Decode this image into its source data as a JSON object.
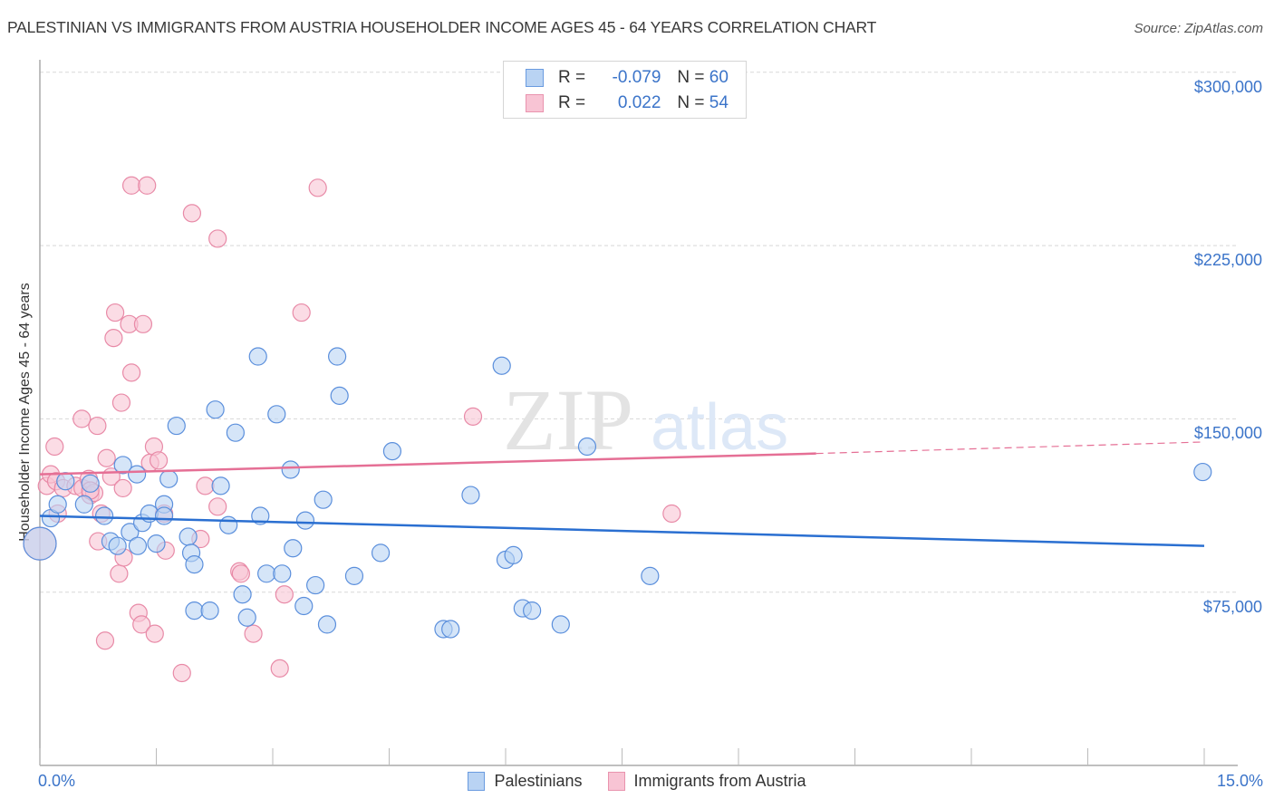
{
  "title": "PALESTINIAN VS IMMIGRANTS FROM AUSTRIA HOUSEHOLDER INCOME AGES 45 - 64 YEARS CORRELATION CHART",
  "source": "Source: ZipAtlas.com",
  "watermark": {
    "zip": "ZIP",
    "atlas": "atlas"
  },
  "colors": {
    "blue_fill": "#b9d3f3",
    "blue_stroke": "#5b8fdc",
    "blue_line": "#2a6fd1",
    "pink_fill": "#f8c4d4",
    "pink_stroke": "#e88aa7",
    "pink_line": "#e56f95",
    "axis_text": "#3b74c9",
    "grid": "#d8d8d8"
  },
  "legend": {
    "rows": [
      {
        "r_label": "R =",
        "r_value": "-0.079",
        "n_label": "N =",
        "n_value": "60",
        "series": "blue"
      },
      {
        "r_label": "R =",
        "r_value": "0.022",
        "n_label": "N =",
        "n_value": "54",
        "series": "pink"
      }
    ]
  },
  "bottom_legend": {
    "items": [
      {
        "label": "Palestinians",
        "series": "blue"
      },
      {
        "label": "Immigrants from Austria",
        "series": "pink"
      }
    ]
  },
  "axes": {
    "y_label": "Householder Income Ages 45 - 64 years",
    "y_ticks": [
      {
        "label": "$300,000",
        "value": 300000
      },
      {
        "label": "$225,000",
        "value": 225000
      },
      {
        "label": "$150,000",
        "value": 150000
      },
      {
        "label": "$75,000",
        "value": 75000
      }
    ],
    "x_ticks": [
      {
        "label": "0.0%",
        "value": 0
      },
      {
        "label": "15.0%",
        "value": 15
      }
    ]
  },
  "chart_data": {
    "type": "scatter",
    "title": "Palestinian vs Immigrants from Austria Householder Income Ages 45 - 64 Years Correlation Chart",
    "xlabel": "",
    "ylabel": "Householder Income Ages 45 - 64 years",
    "xlim": [
      0,
      15
    ],
    "ylim": [
      0,
      310000
    ],
    "x_unit": "%",
    "grid": true,
    "legend_position": "top-center and bottom",
    "series": [
      {
        "name": "Palestinians",
        "color": "#5b8fdc",
        "R": -0.079,
        "N": 60,
        "trend": {
          "x": [
            0,
            15
          ],
          "y": [
            108000,
            95000
          ]
        },
        "points": [
          [
            0.0,
            96000,
            18
          ],
          [
            0.14,
            107000
          ],
          [
            0.23,
            113000
          ],
          [
            0.33,
            123000
          ],
          [
            0.57,
            113000
          ],
          [
            0.65,
            122000
          ],
          [
            0.83,
            108000
          ],
          [
            0.91,
            97000
          ],
          [
            1.0,
            95000
          ],
          [
            1.07,
            130000
          ],
          [
            1.16,
            101000
          ],
          [
            1.25,
            126000
          ],
          [
            1.32,
            105000
          ],
          [
            1.41,
            109000
          ],
          [
            1.5,
            96000
          ],
          [
            1.6,
            113000
          ],
          [
            1.6,
            108000
          ],
          [
            1.66,
            124000
          ],
          [
            1.76,
            147000
          ],
          [
            1.91,
            99000
          ],
          [
            1.95,
            92000
          ],
          [
            1.99,
            87000
          ],
          [
            1.99,
            67000
          ],
          [
            2.19,
            67000
          ],
          [
            2.26,
            154000
          ],
          [
            2.33,
            121000
          ],
          [
            2.43,
            104000
          ],
          [
            2.52,
            144000
          ],
          [
            2.61,
            74000
          ],
          [
            2.67,
            64000
          ],
          [
            2.81,
            177000
          ],
          [
            2.84,
            108000
          ],
          [
            2.92,
            83000
          ],
          [
            3.05,
            152000
          ],
          [
            3.12,
            83000
          ],
          [
            3.23,
            128000
          ],
          [
            3.26,
            94000
          ],
          [
            3.4,
            69000
          ],
          [
            3.42,
            106000
          ],
          [
            3.55,
            78000
          ],
          [
            3.65,
            115000
          ],
          [
            3.7,
            61000
          ],
          [
            3.83,
            177000
          ],
          [
            3.86,
            160000
          ],
          [
            4.05,
            82000
          ],
          [
            4.39,
            92000
          ],
          [
            4.54,
            136000
          ],
          [
            5.2,
            59000
          ],
          [
            5.29,
            59000
          ],
          [
            5.55,
            117000
          ],
          [
            5.95,
            173000
          ],
          [
            6.0,
            89000
          ],
          [
            6.1,
            91000
          ],
          [
            6.22,
            68000
          ],
          [
            6.34,
            67000
          ],
          [
            6.71,
            61000
          ],
          [
            7.05,
            138000
          ],
          [
            7.86,
            82000
          ],
          [
            14.98,
            127000
          ],
          [
            1.26,
            95000
          ]
        ]
      },
      {
        "name": "Immigrants from Austria",
        "color": "#e88aa7",
        "R": 0.022,
        "N": 54,
        "trend": {
          "x": [
            0,
            10.0
          ],
          "y": [
            126000,
            135000
          ],
          "dashed_extension": {
            "x": [
              10.0,
              15
            ],
            "y": [
              135000,
              140000
            ]
          }
        },
        "points": [
          [
            0.0,
            96000,
            18
          ],
          [
            0.09,
            121000
          ],
          [
            0.14,
            126000
          ],
          [
            0.19,
            138000
          ],
          [
            0.21,
            123000
          ],
          [
            0.23,
            109000
          ],
          [
            0.3,
            120000
          ],
          [
            0.46,
            121000
          ],
          [
            0.54,
            150000
          ],
          [
            0.55,
            120000
          ],
          [
            0.63,
            124000
          ],
          [
            0.65,
            117000
          ],
          [
            0.7,
            118000
          ],
          [
            0.74,
            147000
          ],
          [
            0.75,
            97000
          ],
          [
            0.79,
            109000
          ],
          [
            0.84,
            54000
          ],
          [
            0.86,
            133000
          ],
          [
            0.92,
            125000
          ],
          [
            0.97,
            196000
          ],
          [
            0.95,
            185000
          ],
          [
            1.02,
            83000
          ],
          [
            1.05,
            157000
          ],
          [
            1.08,
            90000
          ],
          [
            1.18,
            251000
          ],
          [
            1.18,
            170000
          ],
          [
            1.15,
            191000
          ],
          [
            1.27,
            66000
          ],
          [
            1.31,
            61000
          ],
          [
            1.33,
            191000
          ],
          [
            1.38,
            251000
          ],
          [
            1.42,
            131000
          ],
          [
            1.47,
            138000
          ],
          [
            1.48,
            57000
          ],
          [
            1.6,
            109000
          ],
          [
            1.62,
            93000
          ],
          [
            1.83,
            40000
          ],
          [
            1.96,
            239000
          ],
          [
            2.07,
            98000
          ],
          [
            2.13,
            121000
          ],
          [
            2.29,
            228000
          ],
          [
            2.29,
            112000
          ],
          [
            2.57,
            84000
          ],
          [
            2.59,
            83000
          ],
          [
            2.75,
            57000
          ],
          [
            3.09,
            42000
          ],
          [
            3.15,
            74000
          ],
          [
            3.37,
            196000
          ],
          [
            3.58,
            250000
          ],
          [
            5.58,
            151000
          ],
          [
            8.14,
            109000
          ],
          [
            1.07,
            120000
          ],
          [
            1.53,
            132000
          ],
          [
            0.65,
            119000
          ]
        ]
      }
    ]
  }
}
